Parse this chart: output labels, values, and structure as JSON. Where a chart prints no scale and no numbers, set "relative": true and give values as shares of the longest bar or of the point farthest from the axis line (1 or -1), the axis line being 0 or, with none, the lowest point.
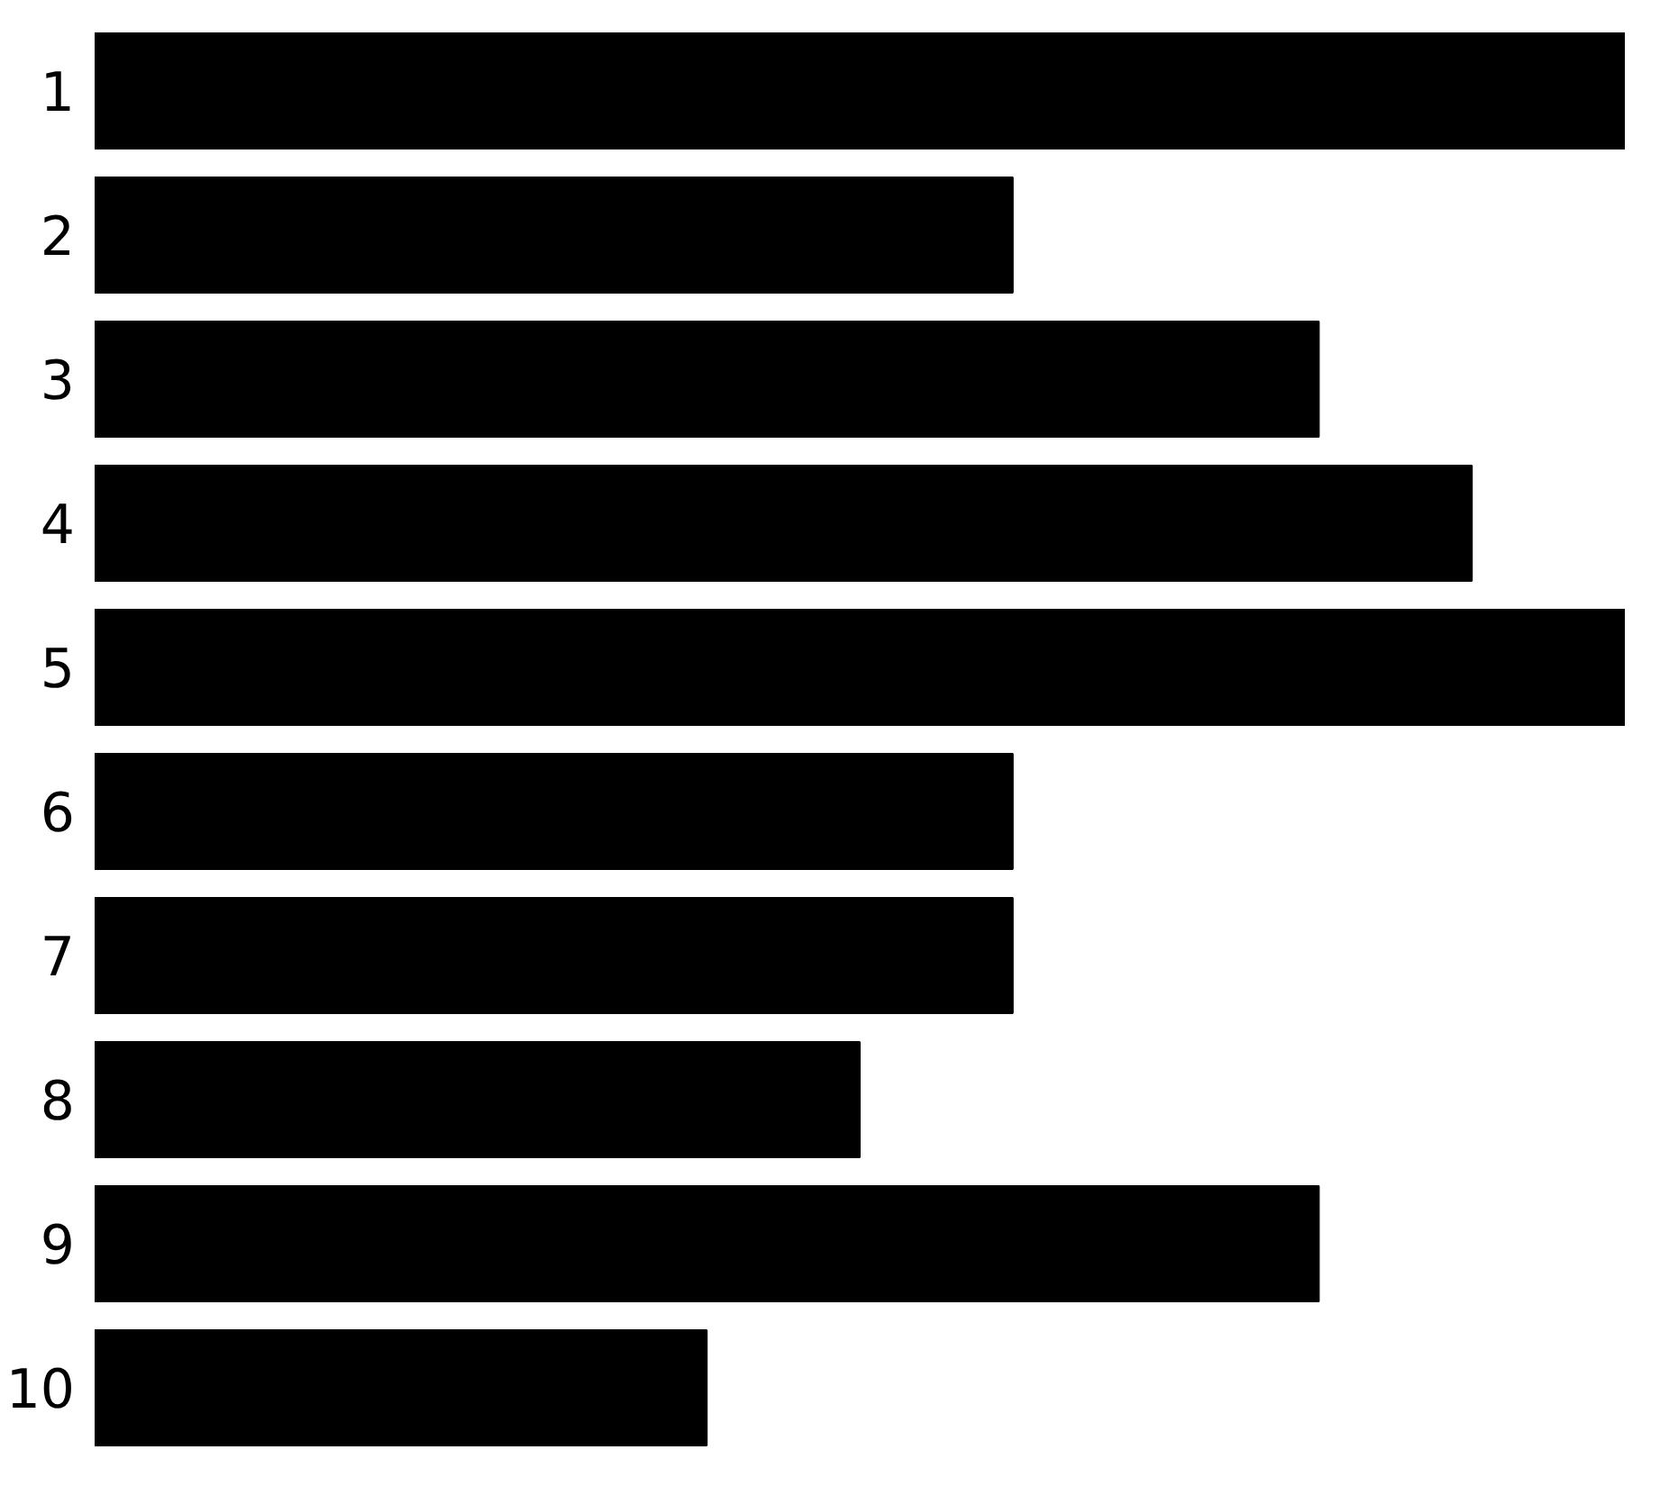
{
  "chart_data": {
    "type": "bar",
    "orientation": "horizontal",
    "relative": true,
    "categories": [
      "1",
      "2",
      "3",
      "4",
      "5",
      "6",
      "7",
      "8",
      "9",
      "10"
    ],
    "values": [
      1,
      0.6,
      0.8,
      0.9,
      1,
      0.6,
      0.6,
      0.5,
      0.8,
      0.4
    ],
    "color": "#000000",
    "grid": false,
    "tick_labels": "y"
  }
}
